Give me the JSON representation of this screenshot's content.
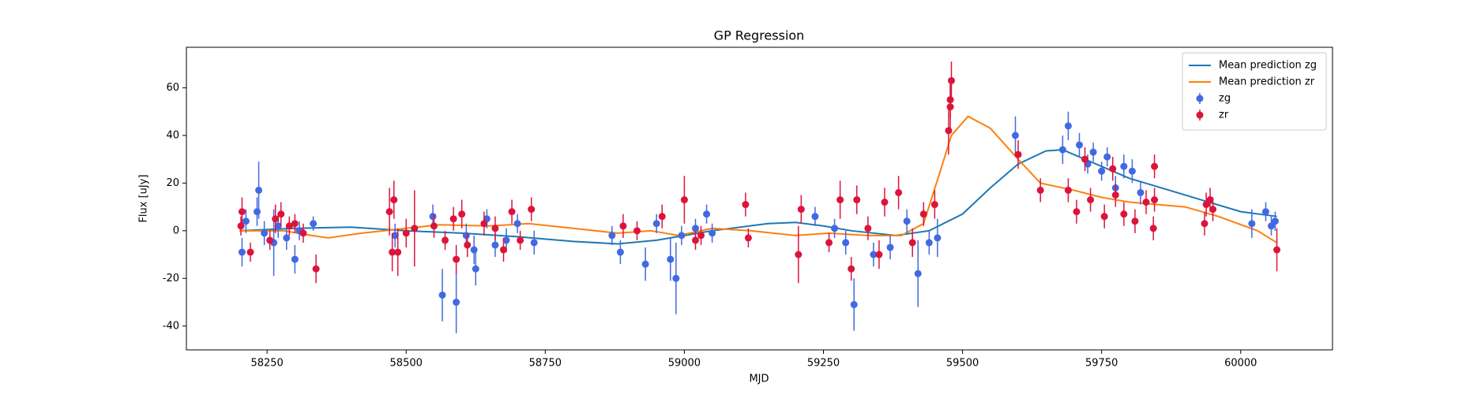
{
  "chart_data": {
    "type": "line",
    "title": "GP Regression",
    "xlabel": "MJD",
    "ylabel": "Flux [uJy]",
    "xlim": [
      58105,
      60165
    ],
    "ylim": [
      -50,
      77
    ],
    "xticks": [
      58250,
      58500,
      58750,
      59000,
      59250,
      59500,
      59750,
      60000
    ],
    "yticks": [
      -40,
      -20,
      0,
      20,
      40,
      60
    ],
    "legend": "upper right",
    "series": [
      {
        "name": "Mean prediction zg",
        "color": "#1f77b4",
        "mode": "line",
        "x": [
          58200,
          58300,
          58400,
          58500,
          58600,
          58700,
          58800,
          58880,
          58950,
          59050,
          59150,
          59200,
          59250,
          59300,
          59380,
          59440,
          59500,
          59550,
          59600,
          59650,
          59680,
          59720,
          59800,
          59900,
          60000,
          60065
        ],
        "values": [
          0,
          1,
          1.5,
          0,
          -1,
          -2.5,
          -4.5,
          -5.5,
          -4,
          0,
          3,
          3.5,
          2,
          0,
          -2,
          0,
          7,
          18,
          28,
          33.5,
          34,
          30,
          22,
          15,
          8,
          6
        ]
      },
      {
        "name": "Mean prediction zr",
        "color": "#ff7f0e",
        "mode": "line",
        "x": [
          58200,
          58280,
          58330,
          58360,
          58420,
          58500,
          58560,
          58650,
          58720,
          58800,
          58880,
          58940,
          58990,
          59050,
          59120,
          59200,
          59260,
          59330,
          59390,
          59430,
          59460,
          59480,
          59510,
          59550,
          59600,
          59640,
          59700,
          59750,
          59800,
          59900,
          59960,
          60030,
          60065
        ],
        "values": [
          0,
          0,
          -2,
          -3,
          -1,
          1,
          2.5,
          2,
          3,
          1,
          -1,
          0,
          -2,
          1,
          0,
          -2,
          -1,
          -2,
          -2,
          3,
          25,
          40,
          48,
          43,
          30,
          20,
          17,
          14,
          12,
          10,
          6,
          0,
          -5
        ]
      },
      {
        "name": "zg",
        "color": "#4169e1",
        "mode": "markers",
        "x": [
          58205,
          58212,
          58235,
          58232,
          58245,
          58262,
          58270,
          58285,
          58300,
          58308,
          58333,
          58480,
          58548,
          58565,
          58590,
          58608,
          58625,
          58622,
          58645,
          58660,
          58680,
          58700,
          58730,
          58870,
          58885,
          58930,
          58950,
          58975,
          58985,
          58995,
          59020,
          59040,
          59050,
          59235,
          59270,
          59290,
          59305,
          59340,
          59370,
          59400,
          59420,
          59440,
          59455,
          59595,
          59680,
          59690,
          59710,
          59725,
          59735,
          59750,
          59760,
          59775,
          59790,
          59805,
          59820,
          60020,
          60045,
          60055,
          60062
        ],
        "values": [
          -9,
          4,
          17,
          8,
          -1,
          -5,
          2,
          -3,
          -12,
          0,
          3,
          -2,
          6,
          -27,
          -30,
          -2,
          -16,
          -8,
          5,
          -6,
          -4,
          3,
          -5,
          -2,
          -9,
          -14,
          3,
          -12,
          -20,
          -2,
          1,
          7,
          -1,
          6,
          1,
          -5,
          -31,
          -10,
          -7,
          4,
          -18,
          -5,
          -3,
          40,
          34,
          44,
          36,
          28,
          33,
          25,
          31,
          18,
          27,
          25,
          16,
          3,
          8,
          2,
          4
        ],
        "errors": [
          6,
          5,
          12,
          6,
          5,
          14,
          5,
          5,
          6,
          4,
          3,
          5,
          5,
          11,
          13,
          5,
          7,
          6,
          4,
          5,
          5,
          4,
          5,
          4,
          5,
          7,
          4,
          9,
          15,
          4,
          4,
          4,
          4,
          4,
          4,
          5,
          11,
          5,
          5,
          5,
          14,
          5,
          8,
          8,
          6,
          6,
          5,
          4,
          4,
          4,
          4,
          5,
          5,
          5,
          5,
          6,
          4,
          4,
          4
        ]
      },
      {
        "name": "zr",
        "color": "#dc143c",
        "mode": "markers",
        "x": [
          58205,
          58203,
          58220,
          58255,
          58265,
          58275,
          58290,
          58300,
          58315,
          58338,
          58470,
          58475,
          58478,
          58485,
          58500,
          58515,
          58550,
          58570,
          58585,
          58590,
          58600,
          58610,
          58640,
          58660,
          58675,
          58690,
          58705,
          58725,
          58890,
          58915,
          58960,
          59000,
          59020,
          59030,
          59110,
          59115,
          59205,
          59210,
          59260,
          59280,
          59300,
          59310,
          59330,
          59350,
          59360,
          59385,
          59410,
          59430,
          59450,
          59475,
          59478,
          59480,
          59478,
          59600,
          59640,
          59690,
          59705,
          59720,
          59730,
          59755,
          59770,
          59775,
          59790,
          59810,
          59830,
          59845,
          59843,
          59845,
          59935,
          59938,
          59945,
          59950,
          60065
        ],
        "values": [
          8,
          2,
          -9,
          -4,
          5,
          7,
          2,
          3,
          -1,
          -16,
          8,
          -9,
          13,
          -9,
          -1,
          1,
          2,
          -4,
          5,
          -12,
          7,
          -6,
          3,
          1,
          -8,
          8,
          -4,
          9,
          2,
          0,
          6,
          13,
          -4,
          -2,
          11,
          -3,
          -10,
          9,
          -5,
          13,
          -16,
          13,
          1,
          -10,
          12,
          16,
          -5,
          7,
          11,
          42,
          52,
          63,
          55,
          32,
          17,
          17,
          8,
          30,
          13,
          6,
          26,
          15,
          7,
          4,
          12,
          27,
          1,
          13,
          3,
          11,
          13,
          9,
          -8
        ],
        "errors": [
          6,
          4,
          4,
          4,
          6,
          5,
          4,
          4,
          4,
          6,
          10,
          8,
          8,
          10,
          6,
          16,
          5,
          4,
          5,
          6,
          6,
          5,
          5,
          5,
          5,
          5,
          4,
          5,
          5,
          4,
          5,
          10,
          4,
          4,
          5,
          4,
          12,
          6,
          4,
          8,
          5,
          6,
          5,
          6,
          6,
          7,
          6,
          5,
          6,
          10,
          9,
          8,
          8,
          6,
          5,
          5,
          5,
          5,
          5,
          5,
          5,
          5,
          5,
          5,
          5,
          5,
          5,
          5,
          5,
          5,
          5,
          5,
          9
        ]
      }
    ]
  }
}
